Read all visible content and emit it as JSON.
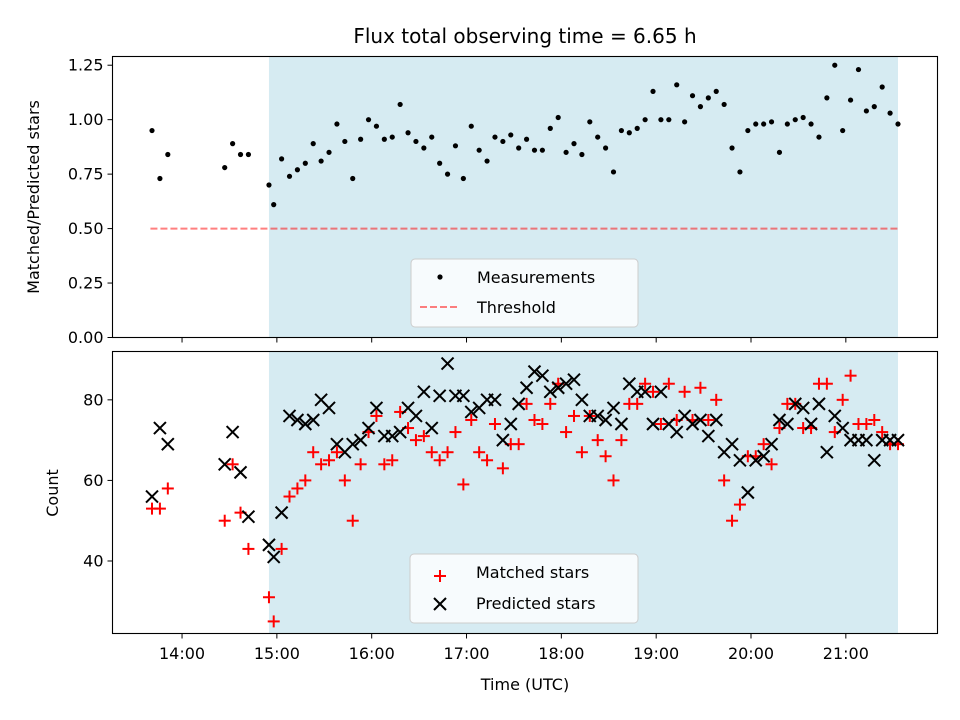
{
  "title": "Flux total observing time = 6.65 h",
  "colors": {
    "shade": "#add8e6",
    "measurement": "#000000",
    "threshold": "#ff0000",
    "matched": "#ff0000",
    "predicted": "#000000"
  },
  "chart_data": [
    {
      "type": "scatter",
      "ylabel": "Matched/Predicted stars",
      "xlabel": "",
      "ylim": [
        0,
        1.29
      ],
      "yticks": [
        "0.00",
        "0.25",
        "0.50",
        "0.75",
        "1.00",
        "1.25"
      ],
      "xlim": [
        "13:16",
        "21:58"
      ],
      "shaded_interval": [
        "14:55",
        "21:33"
      ],
      "legend": {
        "placement": "lower-center",
        "entries": [
          "Measurements",
          "Threshold"
        ]
      },
      "threshold": {
        "name": "Threshold",
        "y": 0.5,
        "x": [
          "13:40",
          "21:33"
        ]
      },
      "series": [
        {
          "name": "Measurements",
          "x": [
            "13:41",
            "13:46",
            "13:51",
            "14:27",
            "14:32",
            "14:37",
            "14:42",
            "14:55",
            "14:58",
            "15:03",
            "15:08",
            "15:13",
            "15:18",
            "15:23",
            "15:28",
            "15:33",
            "15:38",
            "15:43",
            "15:48",
            "15:53",
            "15:58",
            "16:03",
            "16:08",
            "16:13",
            "16:18",
            "16:23",
            "16:28",
            "16:33",
            "16:38",
            "16:43",
            "16:48",
            "16:53",
            "16:58",
            "17:03",
            "17:08",
            "17:13",
            "17:18",
            "17:23",
            "17:28",
            "17:33",
            "17:38",
            "17:43",
            "17:48",
            "17:53",
            "17:58",
            "18:03",
            "18:08",
            "18:13",
            "18:18",
            "18:23",
            "18:28",
            "18:33",
            "18:38",
            "18:43",
            "18:48",
            "18:53",
            "18:58",
            "19:03",
            "19:08",
            "19:13",
            "19:18",
            "19:23",
            "19:28",
            "19:33",
            "19:38",
            "19:43",
            "19:48",
            "19:53",
            "19:58",
            "20:03",
            "20:08",
            "20:13",
            "20:18",
            "20:23",
            "20:28",
            "20:33",
            "20:38",
            "20:43",
            "20:48",
            "20:53",
            "20:58",
            "21:03",
            "21:08",
            "21:13",
            "21:18",
            "21:23",
            "21:28",
            "21:33"
          ],
          "y": [
            0.95,
            0.73,
            0.84,
            0.78,
            0.89,
            0.84,
            0.84,
            0.7,
            0.61,
            0.82,
            0.74,
            0.77,
            0.8,
            0.89,
            0.81,
            0.85,
            0.98,
            0.9,
            0.73,
            0.91,
            1.0,
            0.97,
            0.91,
            0.92,
            1.07,
            0.94,
            0.9,
            0.87,
            0.92,
            0.8,
            0.75,
            0.88,
            0.73,
            0.97,
            0.86,
            0.81,
            0.92,
            0.9,
            0.93,
            0.87,
            0.91,
            0.86,
            0.86,
            0.96,
            1.01,
            0.85,
            0.89,
            0.84,
            0.99,
            0.92,
            0.87,
            0.76,
            0.95,
            0.94,
            0.96,
            1.0,
            1.13,
            1.0,
            1.0,
            1.16,
            0.99,
            1.11,
            1.06,
            1.1,
            1.13,
            1.07,
            0.87,
            0.76,
            0.95,
            0.98,
            0.98,
            0.99,
            0.85,
            0.98,
            1.0,
            1.01,
            0.98,
            0.92,
            1.1,
            1.25,
            0.95,
            1.09,
            1.23,
            1.04,
            1.06,
            1.15,
            1.03,
            0.98
          ]
        }
      ]
    },
    {
      "type": "scatter",
      "ylabel": "Count",
      "xlabel": "Time (UTC)",
      "ylim": [
        22,
        92
      ],
      "yticks": [
        "40",
        "60",
        "80"
      ],
      "xlim": [
        "13:16",
        "21:58"
      ],
      "xticks": [
        "14:00",
        "15:00",
        "16:00",
        "17:00",
        "18:00",
        "19:00",
        "20:00",
        "21:00"
      ],
      "shaded_interval": [
        "14:55",
        "21:33"
      ],
      "legend": {
        "placement": "lower-center",
        "entries": [
          "Matched stars",
          "Predicted stars"
        ]
      },
      "series": [
        {
          "name": "Matched stars",
          "marker": "plus",
          "x": [
            "13:41",
            "13:46",
            "13:51",
            "14:27",
            "14:32",
            "14:37",
            "14:42",
            "14:55",
            "14:58",
            "15:03",
            "15:08",
            "15:13",
            "15:18",
            "15:23",
            "15:28",
            "15:33",
            "15:38",
            "15:43",
            "15:48",
            "15:53",
            "15:58",
            "16:03",
            "16:08",
            "16:13",
            "16:18",
            "16:23",
            "16:28",
            "16:33",
            "16:38",
            "16:43",
            "16:48",
            "16:53",
            "16:58",
            "17:03",
            "17:08",
            "17:13",
            "17:18",
            "17:23",
            "17:28",
            "17:33",
            "17:38",
            "17:43",
            "17:48",
            "17:53",
            "17:58",
            "18:03",
            "18:08",
            "18:13",
            "18:18",
            "18:23",
            "18:28",
            "18:33",
            "18:38",
            "18:43",
            "18:48",
            "18:53",
            "18:58",
            "19:03",
            "19:08",
            "19:13",
            "19:18",
            "19:23",
            "19:28",
            "19:33",
            "19:38",
            "19:43",
            "19:48",
            "19:53",
            "19:58",
            "20:03",
            "20:08",
            "20:13",
            "20:18",
            "20:23",
            "20:28",
            "20:33",
            "20:38",
            "20:43",
            "20:48",
            "20:53",
            "20:58",
            "21:03",
            "21:08",
            "21:13",
            "21:18",
            "21:23",
            "21:28",
            "21:33"
          ],
          "y": [
            53,
            53,
            58,
            50,
            64,
            52,
            43,
            31,
            25,
            43,
            56,
            58,
            60,
            67,
            64,
            65,
            67,
            60,
            50,
            64,
            72,
            76,
            64,
            65,
            77,
            73,
            70,
            71,
            67,
            65,
            67,
            72,
            59,
            75,
            67,
            65,
            74,
            63,
            69,
            69,
            79,
            75,
            74,
            79,
            84,
            72,
            76,
            67,
            76,
            70,
            66,
            60,
            70,
            79,
            79,
            84,
            82,
            74,
            84,
            75,
            82,
            75,
            83,
            75,
            80,
            60,
            50,
            54,
            66,
            66,
            69,
            64,
            73,
            79,
            79,
            73,
            73,
            84,
            84,
            72,
            80,
            86,
            74,
            74,
            75,
            72,
            69,
            69
          ]
        },
        {
          "name": "Predicted stars",
          "marker": "x",
          "x": [
            "13:41",
            "13:46",
            "13:51",
            "14:27",
            "14:32",
            "14:37",
            "14:42",
            "14:55",
            "14:58",
            "15:03",
            "15:08",
            "15:13",
            "15:18",
            "15:23",
            "15:28",
            "15:33",
            "15:38",
            "15:43",
            "15:48",
            "15:53",
            "15:58",
            "16:03",
            "16:08",
            "16:13",
            "16:18",
            "16:23",
            "16:28",
            "16:33",
            "16:38",
            "16:43",
            "16:48",
            "16:53",
            "16:58",
            "17:03",
            "17:08",
            "17:13",
            "17:18",
            "17:23",
            "17:28",
            "17:33",
            "17:38",
            "17:43",
            "17:48",
            "17:53",
            "17:58",
            "18:03",
            "18:08",
            "18:13",
            "18:18",
            "18:23",
            "18:28",
            "18:33",
            "18:38",
            "18:43",
            "18:48",
            "18:53",
            "18:58",
            "19:03",
            "19:08",
            "19:13",
            "19:18",
            "19:23",
            "19:28",
            "19:33",
            "19:38",
            "19:43",
            "19:48",
            "19:53",
            "19:58",
            "20:03",
            "20:08",
            "20:13",
            "20:18",
            "20:23",
            "20:28",
            "20:33",
            "20:38",
            "20:43",
            "20:48",
            "20:53",
            "20:58",
            "21:03",
            "21:08",
            "21:13",
            "21:18",
            "21:23",
            "21:28",
            "21:33"
          ],
          "y": [
            56,
            73,
            69,
            64,
            72,
            62,
            51,
            44,
            41,
            52,
            76,
            75,
            74,
            75,
            80,
            78,
            69,
            67,
            69,
            70,
            73,
            78,
            71,
            71,
            72,
            78,
            76,
            82,
            73,
            81,
            89,
            81,
            81,
            77,
            78,
            80,
            80,
            70,
            74,
            79,
            83,
            87,
            86,
            82,
            83,
            84,
            85,
            80,
            76,
            76,
            75,
            78,
            74,
            84,
            82,
            82,
            74,
            82,
            74,
            72,
            76,
            74,
            75,
            71,
            75,
            67,
            69,
            65,
            57,
            65,
            66,
            69,
            75,
            74,
            79,
            78,
            74,
            79,
            67,
            76,
            73,
            70,
            70,
            70,
            65,
            70,
            70,
            70
          ]
        }
      ]
    }
  ]
}
